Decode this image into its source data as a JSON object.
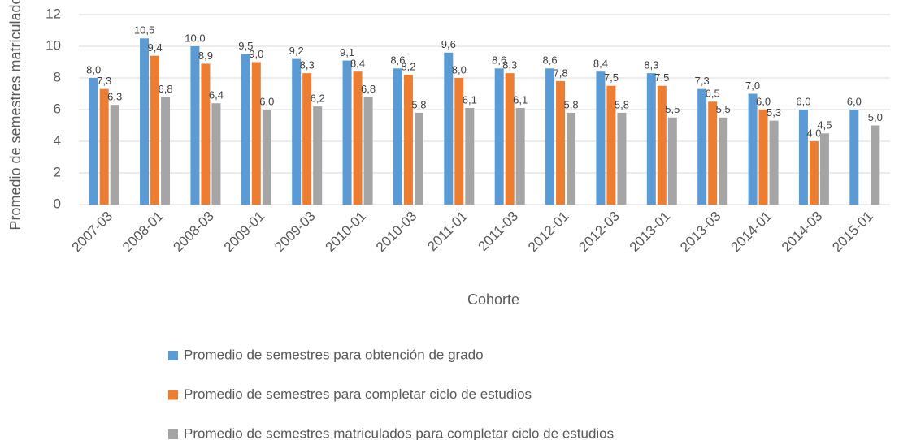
{
  "chart_data": {
    "type": "bar",
    "x_label": "Cohorte",
    "y_label": "Promedio de semestres matriculados",
    "categories": [
      "2007-03",
      "2008-01",
      "2008-03",
      "2009-01",
      "2009-03",
      "2010-01",
      "2010-03",
      "2011-01",
      "2011-03",
      "2012-01",
      "2012-03",
      "2013-01",
      "2013-03",
      "2014-01",
      "2014-03",
      "2015-01"
    ],
    "series": [
      {
        "name": "Promedio de semestres para obtención de grado",
        "color": "#5b9bd5",
        "values": [
          8.0,
          10.5,
          10.0,
          9.5,
          9.2,
          9.1,
          8.6,
          9.6,
          8.6,
          8.6,
          8.4,
          8.3,
          7.3,
          7.0,
          6.0,
          6.0
        ],
        "value_labels": [
          "8,0",
          "10,5",
          "10,0",
          "9,5",
          "9,2",
          "9,1",
          "8,6",
          "9,6",
          "8,6",
          "8,6",
          "8,4",
          "8,3",
          "7,3",
          "7,0",
          "6,0",
          "6,0"
        ]
      },
      {
        "name": "Promedio de semestres para completar ciclo de estudios",
        "color": "#ed7d31",
        "values": [
          7.3,
          9.4,
          8.9,
          9.0,
          8.3,
          8.4,
          8.2,
          8.0,
          8.3,
          7.8,
          7.5,
          7.5,
          6.5,
          6.0,
          4.0,
          null
        ],
        "value_labels": [
          "7,3",
          "9,4",
          "8,9",
          "9,0",
          "8,3",
          "8,4",
          "8,2",
          "8,0",
          "8,3",
          "7,8",
          "7,5",
          "7,5",
          "6,5",
          "6,0",
          "4,0",
          null
        ]
      },
      {
        "name": "Promedio de semestres matriculados para completar ciclo de estudios",
        "color": "#a5a5a5",
        "values": [
          6.3,
          6.8,
          6.4,
          6.0,
          6.2,
          6.8,
          5.8,
          6.1,
          6.1,
          5.8,
          5.8,
          5.5,
          5.5,
          5.3,
          4.5,
          5.0
        ],
        "value_labels": [
          "6,3",
          "6,8",
          "6,4",
          "6,0",
          "6,2",
          "6,8",
          "5,8",
          "6,1",
          "6,1",
          "5,8",
          "5,8",
          "5,5",
          "5,5",
          "5,3",
          "4,5",
          "5,0"
        ]
      }
    ],
    "ylim": [
      0,
      12
    ],
    "yticks": [
      0,
      2,
      4,
      6,
      8,
      10,
      12
    ],
    "grid": true
  }
}
